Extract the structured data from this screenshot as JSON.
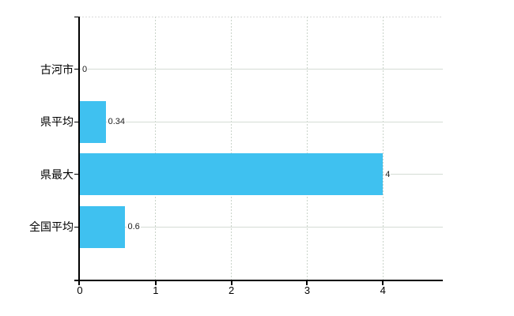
{
  "chart_data": {
    "type": "bar",
    "orientation": "horizontal",
    "title": "",
    "xlabel": "",
    "ylabel": "",
    "categories": [
      "古河市",
      "県平均",
      "県最大",
      "全国平均"
    ],
    "values": [
      0,
      0.34,
      4,
      0.6
    ],
    "value_labels": [
      "0",
      "0.34",
      "4",
      "0.6"
    ],
    "x_ticks": [
      "0",
      "1",
      "2",
      "3",
      "4"
    ],
    "x_tick_values": [
      0,
      1,
      2,
      3,
      4
    ],
    "xlim": [
      0,
      4.79
    ],
    "grid": true,
    "legend": false,
    "bar_color": "#3fc1f0",
    "axis_color": "#000000",
    "h_grid_color": "#d4dcd4",
    "v_grid_color": "#c9d3c9",
    "top_border_color": "#d9d9d9",
    "category_label_color": "#000000",
    "tick_label_color": "#000000",
    "value_label_color": "#1c1c1c",
    "background_color": "#ffffff"
  }
}
